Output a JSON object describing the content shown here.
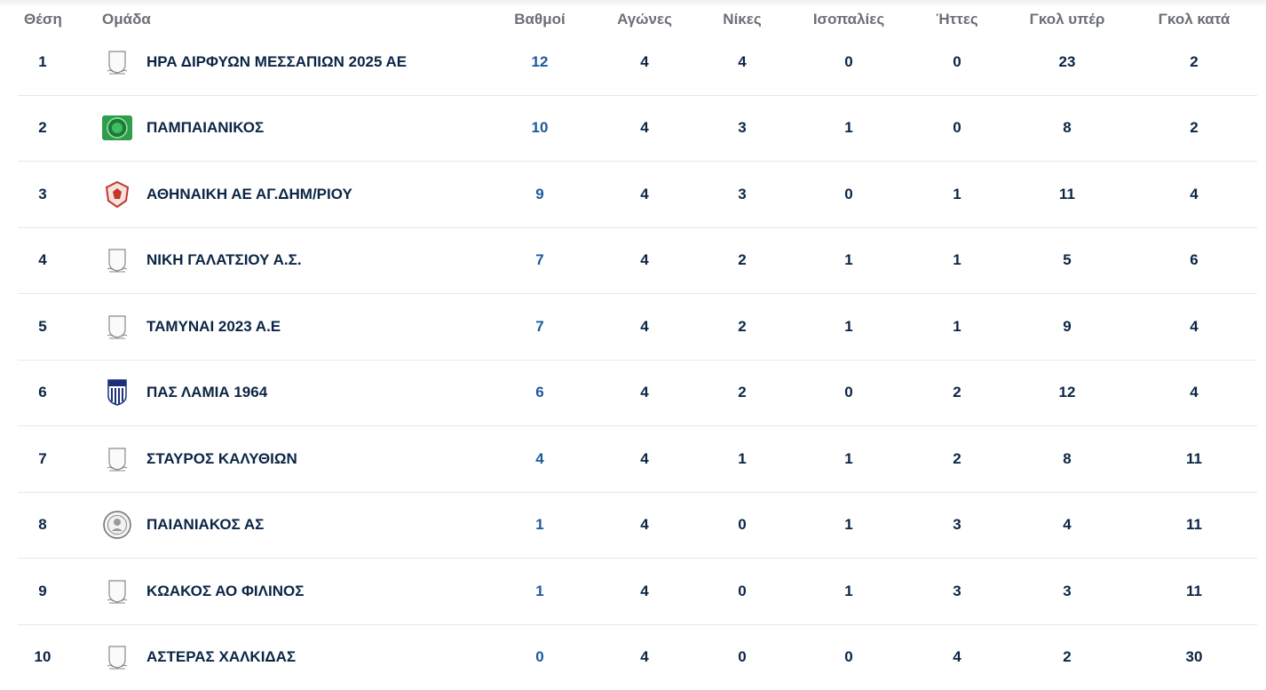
{
  "headers": {
    "position": "Θέση",
    "team": "Ομάδα",
    "points": "Βαθμοί",
    "played": "Αγώνες",
    "wins": "Νίκες",
    "draws": "Ισοπαλίες",
    "losses": "Ήττες",
    "goals_for": "Γκολ υπέρ",
    "goals_against": "Γκολ κατά"
  },
  "colors": {
    "text": "#0b2545",
    "points": "#1d5a9c",
    "header": "#6b6f76",
    "divider": "#e6e8eb"
  },
  "rows": [
    {
      "position": "1",
      "team": "ΗΡΑ ΔΙΡΦΥΩΝ ΜΕΣΣΑΠΙΩΝ 2025 ΑΕ",
      "crest": "placeholder-shield-icon",
      "points": "12",
      "played": "4",
      "wins": "4",
      "draws": "0",
      "losses": "0",
      "goals_for": "23",
      "goals_against": "2"
    },
    {
      "position": "2",
      "team": "ΠΑΜΠΑΙΑΝΙΚΟΣ",
      "crest": "green-crest-icon",
      "points": "10",
      "played": "4",
      "wins": "3",
      "draws": "1",
      "losses": "0",
      "goals_for": "8",
      "goals_against": "2"
    },
    {
      "position": "3",
      "team": "ΑΘΗΝΑΙΚΗ ΑΕ ΑΓ.ΔΗΜ/ΡΙΟΥ",
      "crest": "red-shield-crest-icon",
      "points": "9",
      "played": "4",
      "wins": "3",
      "draws": "0",
      "losses": "1",
      "goals_for": "11",
      "goals_against": "4"
    },
    {
      "position": "4",
      "team": "ΝΙΚΗ ΓΑΛΑΤΣΙΟΥ Α.Σ.",
      "crest": "placeholder-shield-icon",
      "points": "7",
      "played": "4",
      "wins": "2",
      "draws": "1",
      "losses": "1",
      "goals_for": "5",
      "goals_against": "6"
    },
    {
      "position": "5",
      "team": "ΤΑΜΥΝΑΙ 2023 Α.Ε",
      "crest": "placeholder-shield-icon",
      "points": "7",
      "played": "4",
      "wins": "2",
      "draws": "1",
      "losses": "1",
      "goals_for": "9",
      "goals_against": "4"
    },
    {
      "position": "6",
      "team": "ΠΑΣ ΛΑΜΙΑ 1964",
      "crest": "striped-shield-crest-icon",
      "points": "6",
      "played": "4",
      "wins": "2",
      "draws": "0",
      "losses": "2",
      "goals_for": "12",
      "goals_against": "4"
    },
    {
      "position": "7",
      "team": "ΣΤΑΥΡΟΣ ΚΑΛΥΘΙΩΝ",
      "crest": "placeholder-shield-icon",
      "points": "4",
      "played": "4",
      "wins": "1",
      "draws": "1",
      "losses": "2",
      "goals_for": "8",
      "goals_against": "11"
    },
    {
      "position": "8",
      "team": "ΠΑΙΑΝΙΑΚΟΣ ΑΣ",
      "crest": "round-seal-crest-icon",
      "points": "1",
      "played": "4",
      "wins": "0",
      "draws": "1",
      "losses": "3",
      "goals_for": "4",
      "goals_against": "11"
    },
    {
      "position": "9",
      "team": "ΚΩΑΚΟΣ ΑΟ ΦΙΛΙΝΟΣ",
      "crest": "placeholder-shield-icon",
      "points": "1",
      "played": "4",
      "wins": "0",
      "draws": "1",
      "losses": "3",
      "goals_for": "3",
      "goals_against": "11"
    },
    {
      "position": "10",
      "team": "ΑΣΤΕΡΑΣ ΧΑΛΚΙΔΑΣ",
      "crest": "placeholder-shield-icon",
      "points": "0",
      "played": "4",
      "wins": "0",
      "draws": "0",
      "losses": "4",
      "goals_for": "2",
      "goals_against": "30"
    }
  ]
}
